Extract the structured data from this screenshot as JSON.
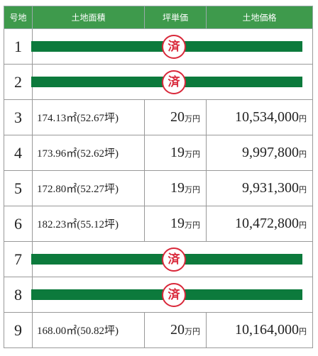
{
  "header": {
    "columns": [
      "号地",
      "土地面積",
      "坪単価",
      "土地価格"
    ]
  },
  "table": {
    "rows": [
      {
        "no": "1",
        "status": "済"
      },
      {
        "no": "2",
        "status": "済"
      },
      {
        "no": "3",
        "area": "174.13㎡(52.67坪)",
        "unit_price": "20",
        "unit_price_unit": "万円",
        "price": "10,534,000",
        "price_unit": "円"
      },
      {
        "no": "4",
        "area": "173.96㎡(52.62坪)",
        "unit_price": "19",
        "unit_price_unit": "万円",
        "price": "9,997,800",
        "price_unit": "円"
      },
      {
        "no": "5",
        "area": "172.80㎡(52.27坪)",
        "unit_price": "19",
        "unit_price_unit": "万円",
        "price": "9,931,300",
        "price_unit": "円"
      },
      {
        "no": "6",
        "area": "182.23㎡(55.12坪)",
        "unit_price": "19",
        "unit_price_unit": "万円",
        "price": "10,472,800",
        "price_unit": "円"
      },
      {
        "no": "7",
        "status": "済"
      },
      {
        "no": "8",
        "status": "済"
      },
      {
        "no": "9",
        "area": "168.00㎡(50.82坪)",
        "unit_price": "20",
        "unit_price_unit": "万円",
        "price": "10,164,000",
        "price_unit": "円"
      }
    ]
  }
}
